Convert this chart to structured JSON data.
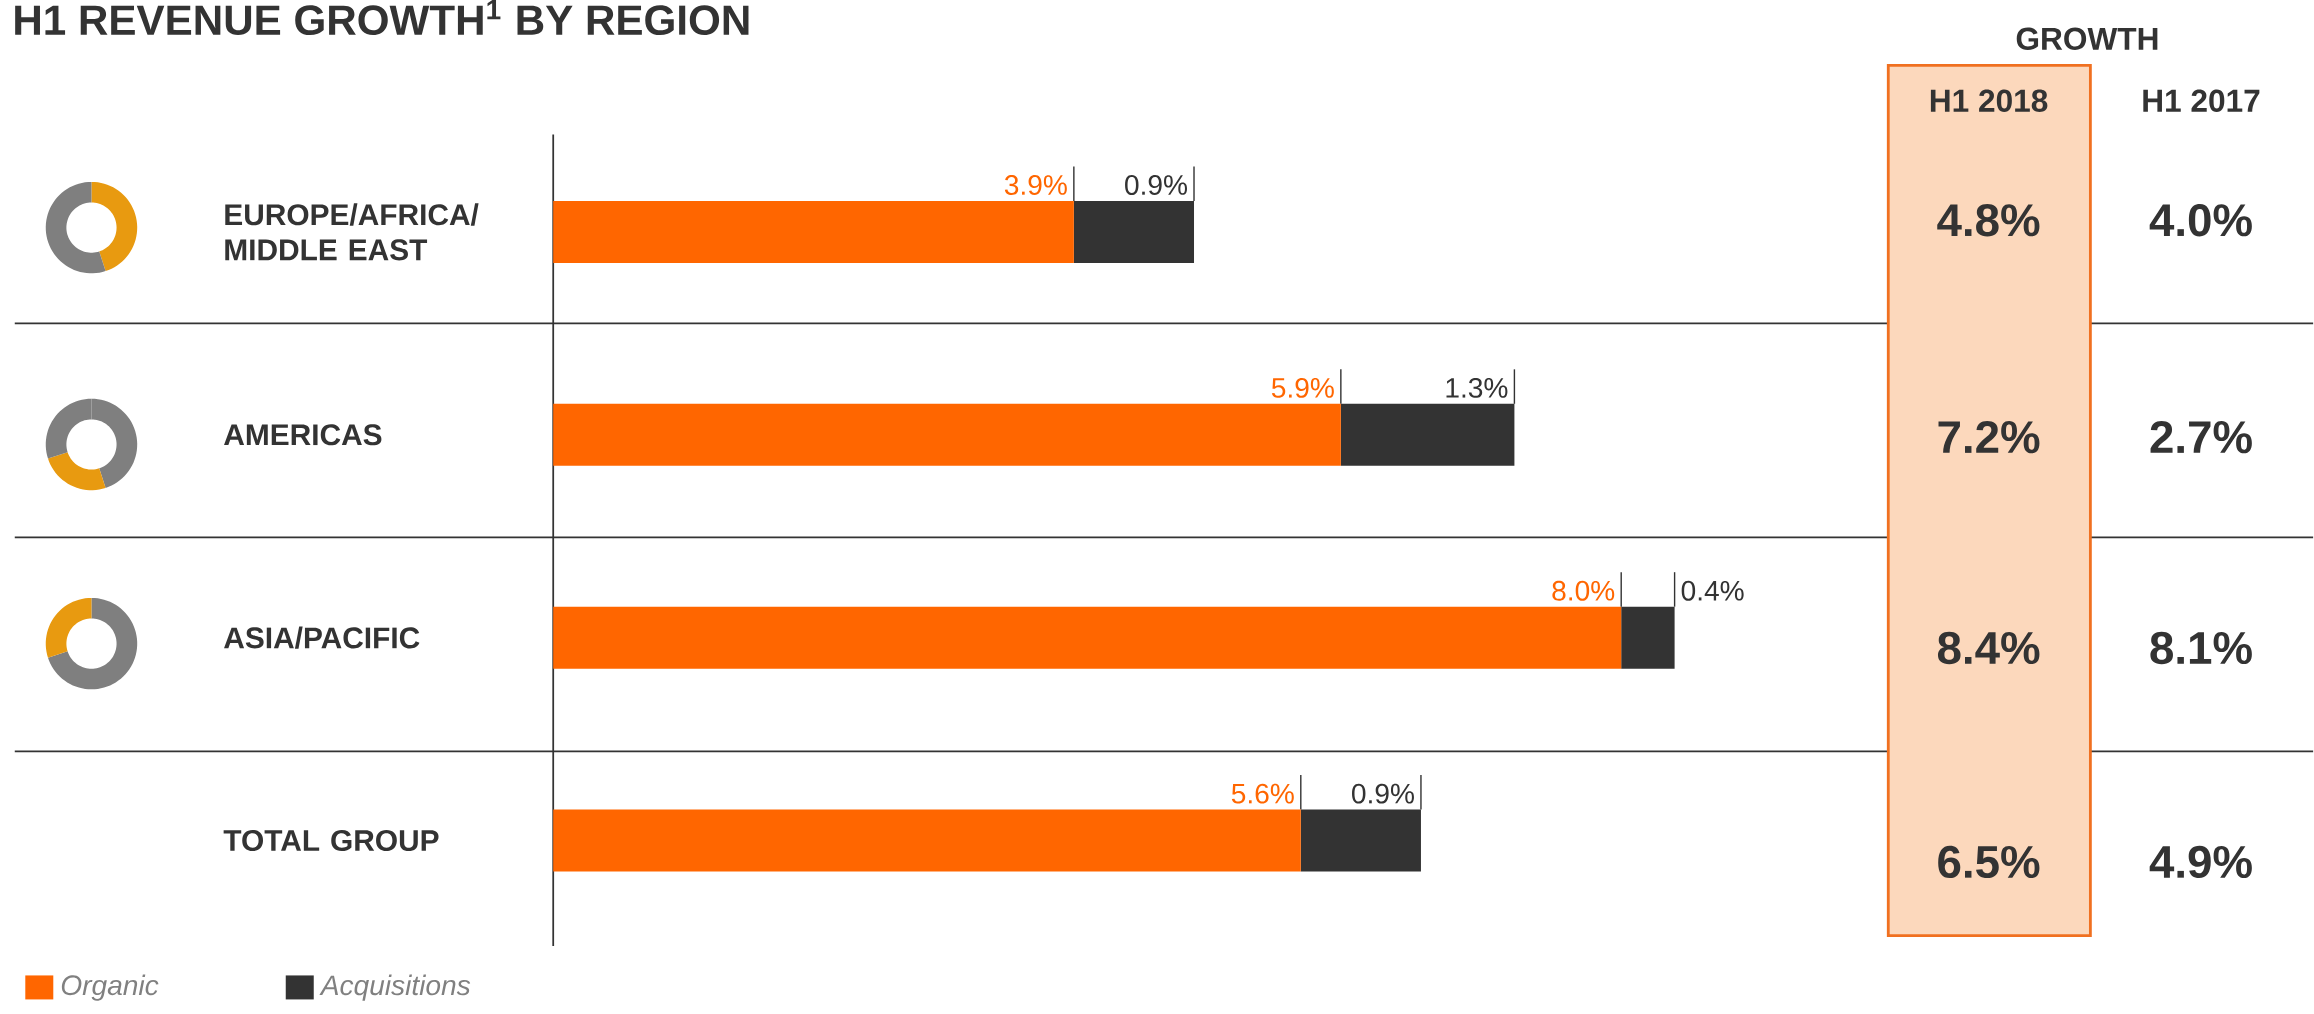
{
  "chart_data": [
    {
      "type": "bar",
      "title": "H1 REVENUE GROWTH$^{1}$ BY REGION",
      "orientation": "horizontal",
      "stacked": true,
      "categories": [
        "EUROPE/AFRICA/ MIDDLE EAST",
        "AMERICAS",
        "ASIA/PACIFIC",
        "TOTAL GROUP"
      ],
      "series": [
        {
          "name": "Organic",
          "color": "#ff6600",
          "values": [
            3.9,
            5.9,
            8.0,
            5.6
          ],
          "value_labels": [
            "3.9%",
            "5.9%",
            "8.0%",
            "5.6%"
          ]
        },
        {
          "name": "Acquisitions",
          "color": "#333333",
          "values": [
            0.9,
            1.3,
            0.4,
            0.9
          ],
          "value_labels": [
            "0.9%",
            "1.3%",
            "0.4%",
            "0.9%"
          ]
        }
      ],
      "legend": "bottom left",
      "annotations": [
        "GROWTH",
        "H1 2018",
        "H1 2017",
        "4.8%",
        "4.0%",
        "7.2%",
        "2.7%",
        "8.4%",
        "8.1%",
        "6.5%",
        "4.9%"
      ]
    },
    {
      "type": "donut",
      "categories": [
        null,
        null
      ],
      "values": [
        45,
        55
      ],
      "colors": [
        "#e89a10",
        "#7f7f7f"
      ]
    },
    {
      "type": "donut",
      "categories": [
        null,
        null,
        null
      ],
      "values": [
        45,
        25,
        30
      ],
      "colors": [
        "#7f7f7f",
        "#e89a10",
        "#7f7f7f"
      ]
    },
    {
      "type": "donut",
      "categories": [
        null,
        null
      ],
      "values": [
        70,
        30
      ],
      "colors": [
        "#7f7f7f",
        "#e89a10"
      ]
    }
  ]
}
